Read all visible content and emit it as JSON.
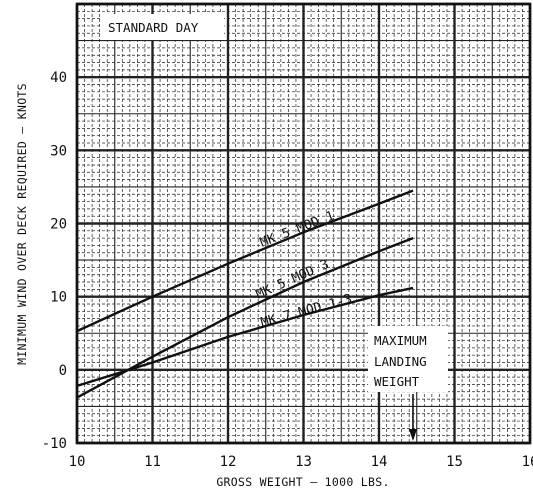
{
  "chart_data": {
    "type": "line",
    "title": "",
    "xlabel": "GROSS WEIGHT – 1000 LBS.",
    "ylabel": "MINIMUM WIND OVER DECK REQUIRED – KNOTS",
    "xlim": [
      10,
      16
    ],
    "ylim": [
      -10,
      50
    ],
    "x_ticks": [
      "10",
      "11",
      "12",
      "13",
      "14",
      "15",
      "16"
    ],
    "y_ticks": [
      "-10",
      "0",
      "10",
      "20",
      "30",
      "40"
    ],
    "x_tick_values": [
      10,
      11,
      12,
      13,
      14,
      15,
      16
    ],
    "y_tick_values": [
      -10,
      0,
      10,
      20,
      30,
      40
    ],
    "grid": true,
    "series": [
      {
        "name": "MK 5 MOD 1",
        "x": [
          10,
          11,
          12,
          13,
          14,
          14.45
        ],
        "y": [
          5.3,
          10.0,
          14.5,
          18.8,
          22.7,
          24.5
        ]
      },
      {
        "name": "MK 5 MOD 3",
        "x": [
          10,
          11,
          12,
          13,
          14,
          14.45
        ],
        "y": [
          -3.8,
          1.8,
          7.2,
          12.0,
          16.2,
          18.0
        ]
      },
      {
        "name": "MK 7 MOD 1-3",
        "x": [
          10,
          11,
          12,
          13,
          14,
          14.45
        ],
        "y": [
          -2.2,
          1.0,
          4.5,
          7.5,
          10.2,
          11.2
        ]
      }
    ],
    "annotations": [
      {
        "text": "STANDARD DAY"
      },
      {
        "text": "MAXIMUM"
      },
      {
        "text": "LANDING"
      },
      {
        "text": "WEIGHT"
      }
    ],
    "max_landing_weight_x": 14.45
  }
}
